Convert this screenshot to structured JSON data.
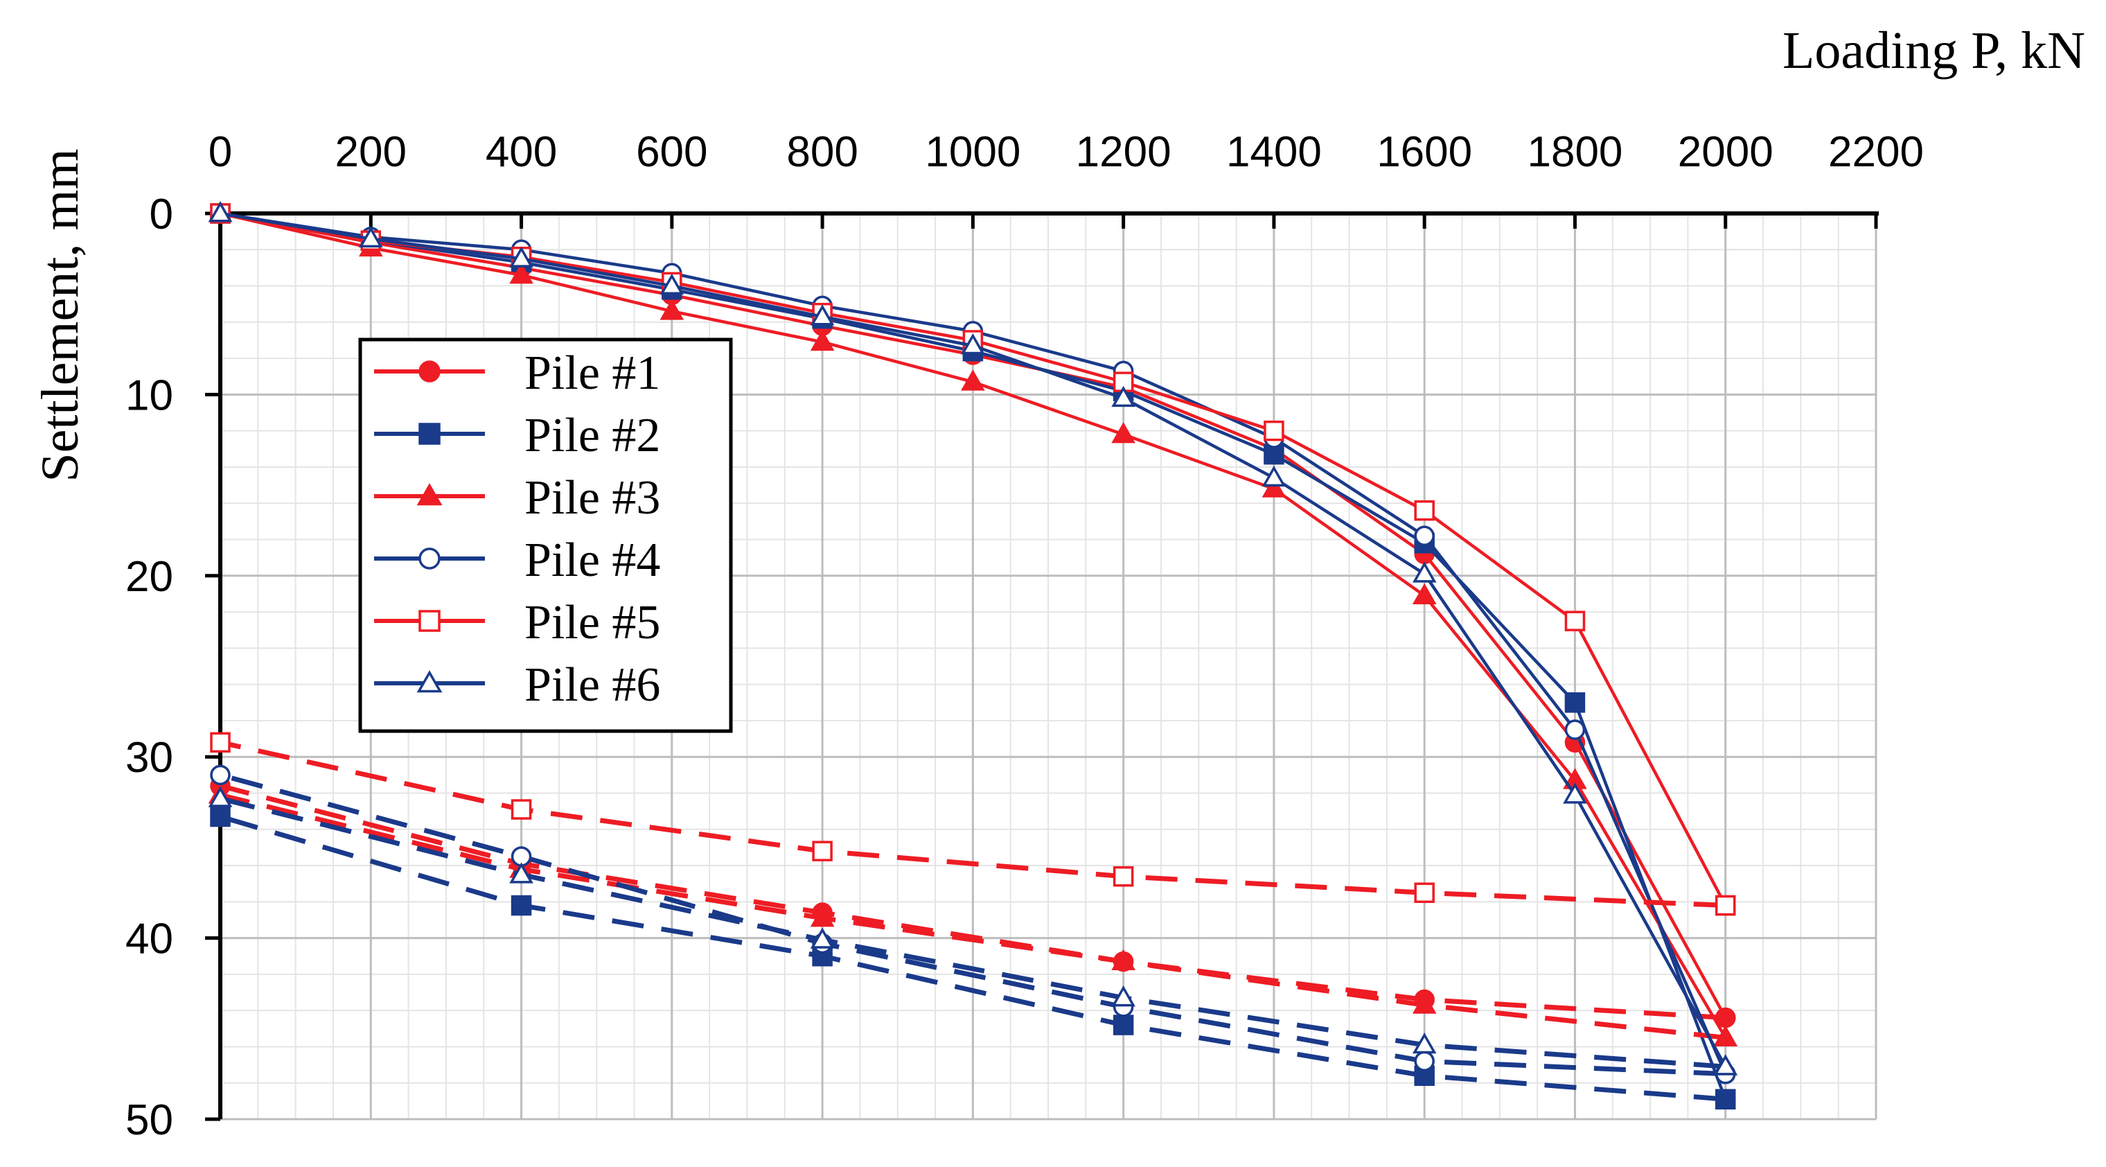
{
  "chart_data": {
    "type": "line",
    "title": "",
    "xlabel": "Loading P, kN",
    "ylabel": "Settlement, mm",
    "xlim": [
      0,
      2200
    ],
    "ylim": [
      0,
      50
    ],
    "y_inverted": true,
    "x_axis_position": "top",
    "x_ticks": [
      0,
      200,
      400,
      600,
      800,
      1000,
      1200,
      1400,
      1600,
      1800,
      2000,
      2200
    ],
    "y_ticks": [
      0,
      10,
      20,
      30,
      40,
      50
    ],
    "grid": true,
    "legend_position": "upper-left",
    "series": [
      {
        "name": "Pile #1",
        "color": "#ee1c24",
        "marker": "circle",
        "filled": true,
        "loading": {
          "x": [
            0,
            200,
            400,
            600,
            800,
            1000,
            1200,
            1400,
            1600,
            1800,
            2000
          ],
          "y": [
            0,
            1.6,
            3.0,
            4.5,
            6.2,
            7.8,
            9.6,
            13.0,
            18.8,
            29.2,
            44.4
          ]
        },
        "unloading": {
          "x": [
            2000,
            1600,
            1200,
            800,
            400,
            0
          ],
          "y": [
            44.4,
            43.4,
            41.3,
            38.6,
            35.9,
            31.6
          ]
        }
      },
      {
        "name": "Pile #2",
        "color": "#1a3a8a",
        "marker": "square",
        "filled": true,
        "loading": {
          "x": [
            0,
            200,
            400,
            600,
            800,
            1000,
            1200,
            1400,
            1600,
            1800,
            2000
          ],
          "y": [
            0,
            1.5,
            2.7,
            4.2,
            5.8,
            7.6,
            9.8,
            13.3,
            18.2,
            27.0,
            48.9
          ]
        },
        "unloading": {
          "x": [
            2000,
            1600,
            1200,
            800,
            400,
            0
          ],
          "y": [
            48.9,
            47.6,
            44.8,
            41.0,
            38.2,
            33.3
          ]
        }
      },
      {
        "name": "Pile #3",
        "color": "#ee1c24",
        "marker": "triangle",
        "filled": true,
        "loading": {
          "x": [
            0,
            200,
            400,
            600,
            800,
            1000,
            1200,
            1400,
            1600,
            1800,
            2000
          ],
          "y": [
            0,
            1.9,
            3.4,
            5.4,
            7.1,
            9.3,
            12.2,
            15.2,
            21.1,
            31.3,
            45.5
          ]
        },
        "unloading": {
          "x": [
            2000,
            1600,
            1200,
            800,
            400,
            0
          ],
          "y": [
            45.5,
            43.7,
            41.3,
            38.9,
            36.2,
            32.1
          ]
        }
      },
      {
        "name": "Pile #4",
        "color": "#1a3a8a",
        "marker": "circle",
        "filled": false,
        "loading": {
          "x": [
            0,
            200,
            400,
            600,
            800,
            1000,
            1200,
            1400,
            1600,
            1800,
            2000
          ],
          "y": [
            0,
            1.3,
            2.0,
            3.3,
            5.1,
            6.5,
            8.7,
            12.4,
            17.8,
            28.5,
            47.5
          ]
        },
        "unloading": {
          "x": [
            2000,
            1600,
            1200,
            800,
            400,
            0
          ],
          "y": [
            47.5,
            46.8,
            43.8,
            40.3,
            35.5,
            31.0
          ]
        }
      },
      {
        "name": "Pile #5",
        "color": "#ee1c24",
        "marker": "square",
        "filled": false,
        "loading": {
          "x": [
            0,
            200,
            400,
            600,
            800,
            1000,
            1200,
            1400,
            1600,
            1800,
            2000
          ],
          "y": [
            0,
            1.5,
            2.4,
            3.8,
            5.5,
            7.0,
            9.3,
            12.0,
            16.4,
            22.5,
            38.2
          ]
        },
        "unloading": {
          "x": [
            2000,
            1600,
            1200,
            800,
            400,
            0
          ],
          "y": [
            38.2,
            37.5,
            36.6,
            35.2,
            32.9,
            29.2
          ]
        }
      },
      {
        "name": "Pile #6",
        "color": "#1a3a8a",
        "marker": "triangle",
        "filled": false,
        "loading": {
          "x": [
            0,
            200,
            400,
            600,
            800,
            1000,
            1200,
            1400,
            1600,
            1800,
            2000
          ],
          "y": [
            0,
            1.4,
            2.5,
            4.0,
            5.7,
            7.3,
            10.2,
            14.6,
            19.9,
            32.1,
            47.1
          ]
        },
        "unloading": {
          "x": [
            2000,
            1600,
            1200,
            800,
            400,
            0
          ],
          "y": [
            47.1,
            45.9,
            43.3,
            40.1,
            36.5,
            32.3
          ]
        }
      }
    ]
  }
}
